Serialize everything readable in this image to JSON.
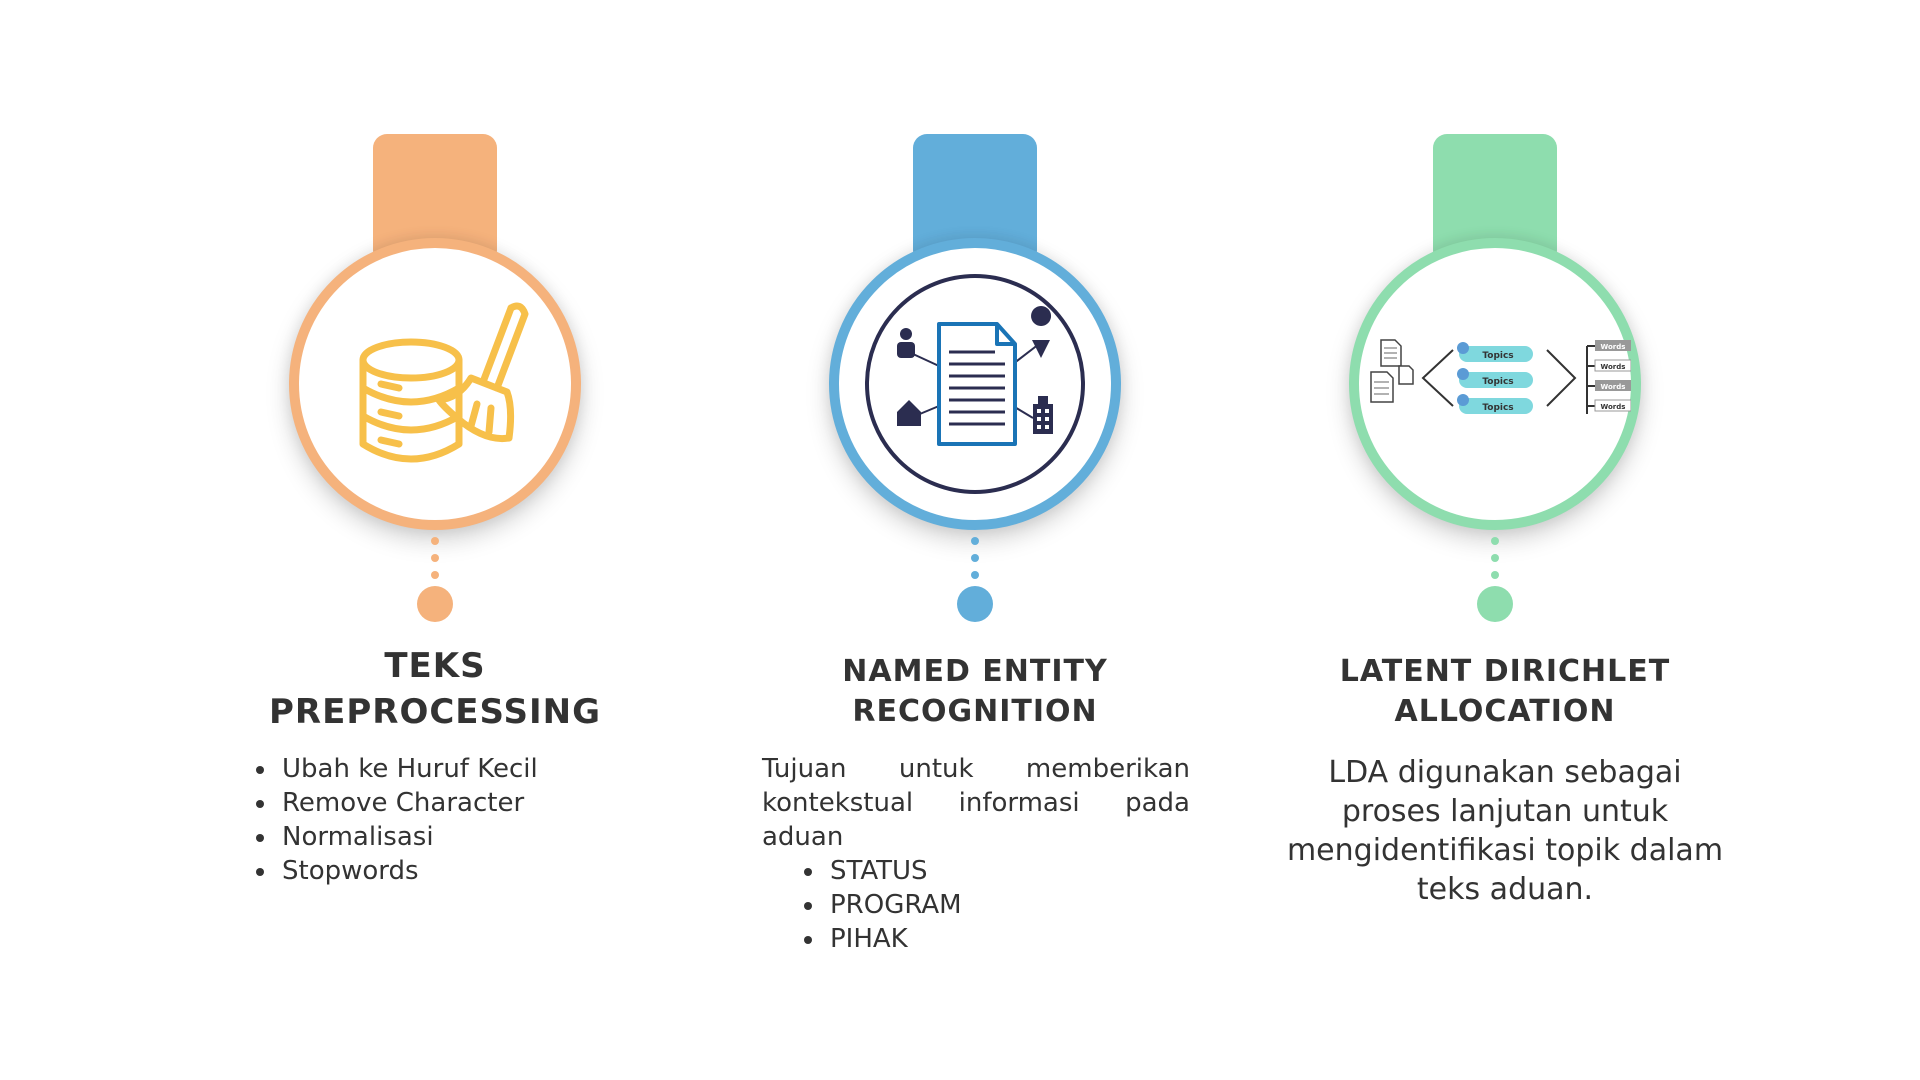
{
  "steps": [
    {
      "title_line1": "TEKS",
      "title_line2": "PREPROCESSING",
      "icon": "database-broom-icon",
      "accent": "#F5B27C",
      "items": [
        "Ubah ke Huruf Kecil",
        "Remove Character",
        "Normalisasi",
        "Stopwords"
      ]
    },
    {
      "title_line1": "NAMED ENTITY",
      "title_line2": "RECOGNITION",
      "icon": "document-entities-icon",
      "accent": "#62AEDA",
      "intro": "Tujuan untuk memberikan kontekstual informasi pada aduan",
      "items": [
        "STATUS",
        "PROGRAM",
        "PIHAK"
      ]
    },
    {
      "title_line1": "LATENT DIRICHLET",
      "title_line2": "ALLOCATION",
      "icon": "topic-model-icon",
      "accent": "#8EDDAE",
      "topic_label": "Topics",
      "word_label": "Words",
      "description": "LDA digunakan sebagai proses lanjutan untuk mengidentifikasi topik dalam teks aduan."
    }
  ]
}
